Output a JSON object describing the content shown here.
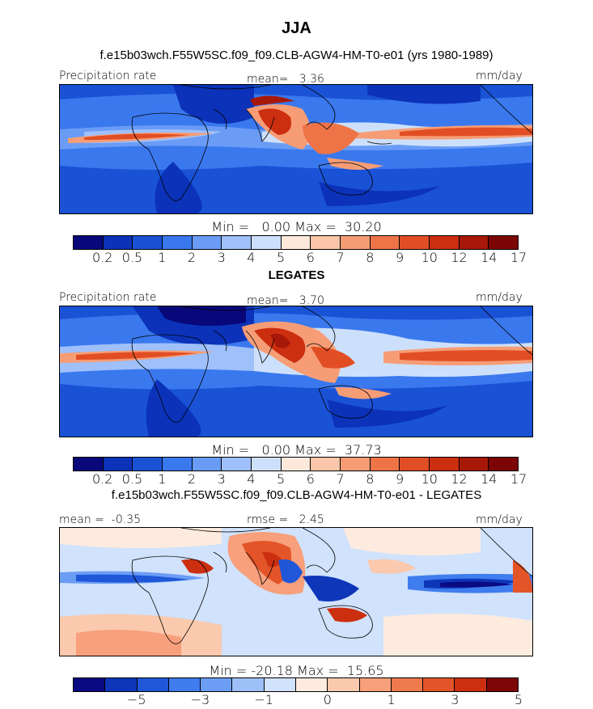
{
  "header": {
    "title": "JJA",
    "subtitle": "f.e15b03wch.F55W5SC.f09_f09.CLB-AGW4-HM-T0-e01 (yrs 1980-1989)"
  },
  "panels": [
    {
      "left_label": "Precipitation rate",
      "center_label": "mean=   3.36",
      "right_label": "mm/day",
      "minmax": "Min =   0.00 Max =  30.20",
      "below_title": "LEGATES"
    },
    {
      "left_label": "Precipitation rate",
      "center_label": "mean=   3.70",
      "right_label": "mm/day",
      "minmax": "Min =   0.00 Max =  37.73",
      "below_title": "f.e15b03wch.F55W5SC.f09_f09.CLB-AGW4-HM-T0-e01 - LEGATES"
    },
    {
      "left_label": "mean =  -0.35",
      "center_label": "rmse =   2.45",
      "right_label": "mm/day",
      "minmax": "Min = -20.18 Max =  15.65",
      "below_title": ""
    }
  ],
  "colorbars": {
    "precip_colors": [
      "#08087a",
      "#0b32b8",
      "#1a52d6",
      "#3a78ee",
      "#6a9cf6",
      "#9fc0fa",
      "#cde0fb",
      "#fde9dc",
      "#fbc6a9",
      "#f69d76",
      "#ee7448",
      "#e24e24",
      "#cc2e10",
      "#a81808",
      "#7c0606"
    ],
    "precip_ticks": [
      "0.2",
      "0.5",
      "1",
      "2",
      "3",
      "4",
      "5",
      "6",
      "7",
      "8",
      "9",
      "10",
      "12",
      "14",
      "17"
    ],
    "diff_colors": [
      "#0a0a82",
      "#0d36b9",
      "#1f57d8",
      "#3f7cee",
      "#6c9df5",
      "#9ec0f9",
      "#d0e2fc",
      "#fdebdf",
      "#fbc9ad",
      "#f7a07b",
      "#ef7a4e",
      "#e35428",
      "#cb2f10",
      "#7e0606"
    ],
    "diff_ticks": [
      "−5",
      "−3",
      "−1",
      "0",
      "1",
      "3",
      "5"
    ]
  },
  "chart_data": [
    {
      "type": "heatmap",
      "title": "JJA",
      "subtitle": "f.e15b03wch.F55W5SC.f09_f09.CLB-AGW4-HM-T0-e01 (yrs 1980-1989)",
      "variable": "Precipitation rate",
      "units": "mm/day",
      "mean": 3.36,
      "min": 0.0,
      "max": 30.2,
      "contour_levels": [
        0.2,
        0.5,
        1,
        2,
        3,
        4,
        5,
        6,
        7,
        8,
        9,
        10,
        12,
        14,
        17
      ]
    },
    {
      "type": "heatmap",
      "title": "LEGATES",
      "variable": "Precipitation rate",
      "units": "mm/day",
      "mean": 3.7,
      "min": 0.0,
      "max": 37.73,
      "contour_levels": [
        0.2,
        0.5,
        1,
        2,
        3,
        4,
        5,
        6,
        7,
        8,
        9,
        10,
        12,
        14,
        17
      ]
    },
    {
      "type": "heatmap",
      "title": "f.e15b03wch.F55W5SC.f09_f09.CLB-AGW4-HM-T0-e01 - LEGATES",
      "units": "mm/day",
      "mean": -0.35,
      "rmse": 2.45,
      "min": -20.18,
      "max": 15.65,
      "contour_levels": [
        -5,
        -3,
        -1,
        0,
        1,
        3,
        5
      ]
    }
  ]
}
